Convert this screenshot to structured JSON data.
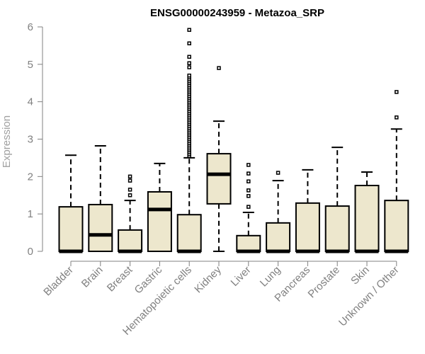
{
  "chart_data": {
    "type": "boxplot",
    "title": "ENSG00000243959 - Metazoa_SRP",
    "xlabel": "",
    "ylabel": "Expression",
    "ylim": [
      0,
      6
    ],
    "yticks": [
      "0",
      "1",
      "2",
      "3",
      "4",
      "5",
      "6"
    ],
    "grid": false,
    "box_color": "#EDE7CD",
    "categories": [
      "Bladder",
      "Brain",
      "Breast",
      "Gastric",
      "Hematopoietic cells",
      "Kidney",
      "Liver",
      "Lung",
      "Pancreas",
      "Prostate",
      "Skin",
      "Unknown / Other"
    ],
    "boxes": [
      {
        "min": 0,
        "q1": 0,
        "median": 0,
        "q3": 1.19,
        "max": 2.57,
        "outliers": []
      },
      {
        "min": 0,
        "q1": 0,
        "median": 0.44,
        "q3": 1.25,
        "max": 2.82,
        "outliers": []
      },
      {
        "min": 0,
        "q1": 0,
        "median": 0,
        "q3": 0.57,
        "max": 1.36,
        "outliers": [
          1.5,
          1.65,
          1.89,
          2.0
        ]
      },
      {
        "min": 0,
        "q1": 0,
        "median": 1.12,
        "q3": 1.59,
        "max": 2.35,
        "outliers": []
      },
      {
        "min": 0,
        "q1": 0,
        "median": 0,
        "q3": 0.98,
        "max": 2.5,
        "outliers": [
          2.55,
          2.6,
          2.65,
          2.7,
          2.75,
          2.8,
          2.85,
          2.9,
          2.95,
          3.0,
          3.05,
          3.1,
          3.15,
          3.2,
          3.25,
          3.3,
          3.35,
          3.4,
          3.45,
          3.5,
          3.55,
          3.6,
          3.65,
          3.7,
          3.75,
          3.8,
          3.85,
          3.9,
          3.95,
          4.0,
          4.05,
          4.1,
          4.15,
          4.2,
          4.25,
          4.3,
          4.35,
          4.4,
          4.45,
          4.5,
          4.55,
          4.6,
          4.65,
          4.7,
          4.92,
          5.03,
          5.2,
          5.56,
          5.92
        ]
      },
      {
        "min": 0,
        "q1": 1.27,
        "median": 2.06,
        "q3": 2.61,
        "max": 3.48,
        "outliers": [
          4.9
        ]
      },
      {
        "min": 0,
        "q1": 0,
        "median": 0,
        "q3": 0.42,
        "max": 1.04,
        "outliers": [
          1.19,
          1.48,
          1.63,
          1.87,
          2.08,
          2.31
        ]
      },
      {
        "min": 0,
        "q1": 0,
        "median": 0,
        "q3": 0.76,
        "max": 1.89,
        "outliers": [
          2.1
        ]
      },
      {
        "min": 0,
        "q1": 0,
        "median": 0,
        "q3": 1.29,
        "max": 2.18,
        "outliers": []
      },
      {
        "min": 0,
        "q1": 0,
        "median": 0,
        "q3": 1.21,
        "max": 2.78,
        "outliers": []
      },
      {
        "min": 0,
        "q1": 0,
        "median": 0,
        "q3": 1.76,
        "max": 2.12,
        "outliers": []
      },
      {
        "min": 0,
        "q1": 0,
        "median": 0,
        "q3": 1.36,
        "max": 3.27,
        "outliers": [
          3.58,
          4.26
        ]
      }
    ]
  }
}
